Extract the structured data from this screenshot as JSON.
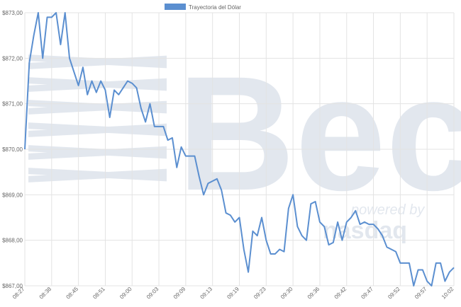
{
  "chart_data": {
    "type": "line",
    "legend": "top",
    "grid": true,
    "watermark": [
      "Bec",
      "powered by",
      "nasdaq"
    ],
    "categories": [
      "08:27",
      null,
      null,
      null,
      null,
      null,
      "08:38",
      null,
      null,
      null,
      null,
      null,
      "08:45",
      null,
      null,
      null,
      null,
      null,
      "08:51",
      null,
      null,
      null,
      null,
      null,
      "09:00",
      null,
      null,
      null,
      null,
      null,
      "09:03",
      null,
      null,
      null,
      null,
      null,
      "09:09",
      null,
      null,
      null,
      null,
      null,
      "09:13",
      null,
      null,
      null,
      null,
      null,
      "09:19",
      null,
      null,
      null,
      null,
      null,
      "09:23",
      null,
      null,
      null,
      null,
      null,
      "09:30",
      null,
      null,
      null,
      null,
      null,
      "09:36",
      null,
      null,
      null,
      null,
      null,
      "09:42",
      null,
      null,
      null,
      null,
      null,
      "09:47",
      null,
      null,
      null,
      null,
      null,
      "09:52",
      null,
      null,
      null,
      null,
      null,
      "09:57",
      null,
      null,
      null,
      null,
      null,
      "10:02"
    ],
    "series": [
      {
        "name": "Trayectoria del Dólar",
        "color": "#5b8fd0",
        "values": [
          870.0,
          871.9,
          872.5,
          873.0,
          872.0,
          872.9,
          872.9,
          873.0,
          872.3,
          873.0,
          872.0,
          871.7,
          871.4,
          871.8,
          871.2,
          871.5,
          871.25,
          871.5,
          871.3,
          870.7,
          871.3,
          871.2,
          871.35,
          871.5,
          871.45,
          871.35,
          870.9,
          870.6,
          871.0,
          870.5,
          870.5,
          870.5,
          870.2,
          870.25,
          869.6,
          870.05,
          869.85,
          869.85,
          869.85,
          869.4,
          869.0,
          869.25,
          869.3,
          869.35,
          869.1,
          868.6,
          868.55,
          868.4,
          868.5,
          867.8,
          867.3,
          868.2,
          868.1,
          868.5,
          868.0,
          867.7,
          867.7,
          867.8,
          867.75,
          868.7,
          869.0,
          868.3,
          868.1,
          868.0,
          868.8,
          868.85,
          868.4,
          868.3,
          867.9,
          867.95,
          868.4,
          868.0,
          868.4,
          868.5,
          868.65,
          868.35,
          868.4,
          868.35,
          868.35,
          868.25,
          868.1,
          867.85,
          867.8,
          867.75,
          867.5,
          867.5,
          867.5,
          867.0,
          867.35,
          867.35,
          867.1,
          867.0,
          867.5,
          867.5,
          867.1,
          867.3,
          867.4
        ]
      }
    ],
    "ylim": [
      867,
      873
    ],
    "yticks": [
      {
        "value": 867,
        "label": "$867,00"
      },
      {
        "value": 868,
        "label": "$868,00"
      },
      {
        "value": 869,
        "label": "$869,00"
      },
      {
        "value": 870,
        "label": "$870,00"
      },
      {
        "value": 871,
        "label": "$871,00"
      },
      {
        "value": 872,
        "label": "$872,00"
      },
      {
        "value": 873,
        "label": "$873,00"
      }
    ]
  }
}
